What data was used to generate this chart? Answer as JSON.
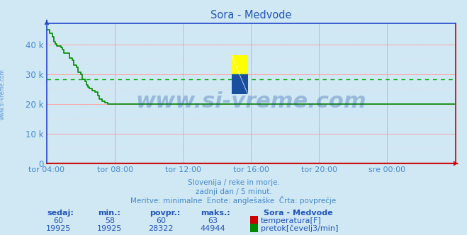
{
  "title": "Sora - Medvode",
  "background_color": "#d0e8f4",
  "plot_bg_color": "#d0e8f4",
  "grid_color_h": "#ff8888",
  "grid_color_v": "#ffaaaa",
  "text_color": "#4488cc",
  "subtitle_lines": [
    "Slovenija / reke in morje.",
    "zadnji dan / 5 minut.",
    "Meritve: minimalne  Enote: anglešaške  Črta: povprečje"
  ],
  "xlabel_ticks": [
    "tor 04:00",
    "tor 08:00",
    "tor 12:00",
    "tor 16:00",
    "tor 20:00",
    "sre 00:00"
  ],
  "yticks": [
    0,
    10000,
    20000,
    30000,
    40000
  ],
  "ytick_labels": [
    "0",
    "10 k",
    "20 k",
    "30 k",
    "40 k"
  ],
  "ylim": [
    0,
    47000
  ],
  "xlim_left": 0,
  "xlim_right": 288,
  "avg_line_value": 28322,
  "avg_line_color": "#00aa00",
  "flow_line_color": "#008800",
  "temp_line_color": "#cc0000",
  "spine_left_color": "#2244cc",
  "spine_bottom_color": "#cc0000",
  "watermark": "www.si-vreme.com",
  "watermark_color": "#1a4fa0",
  "watermark_alpha": 0.3,
  "watermark_fontsize": 22,
  "sedaj": 19925,
  "sedaj_min": 19925,
  "sedaj_povpr": 28322,
  "sedaj_maks": 44944,
  "temp_sedaj": 60,
  "temp_min": 58,
  "temp_povpr": 60,
  "temp_maks": 63,
  "table_headers": [
    "sedaj:",
    "min.:",
    "povpr.:",
    "maks.:"
  ],
  "station_label": "Sora - Medvode",
  "legend_temp_label": "temperatura[F]",
  "legend_flow_label": "pretok[čevelj3/min]",
  "legend_temp_color": "#cc0000",
  "legend_flow_color": "#008800"
}
